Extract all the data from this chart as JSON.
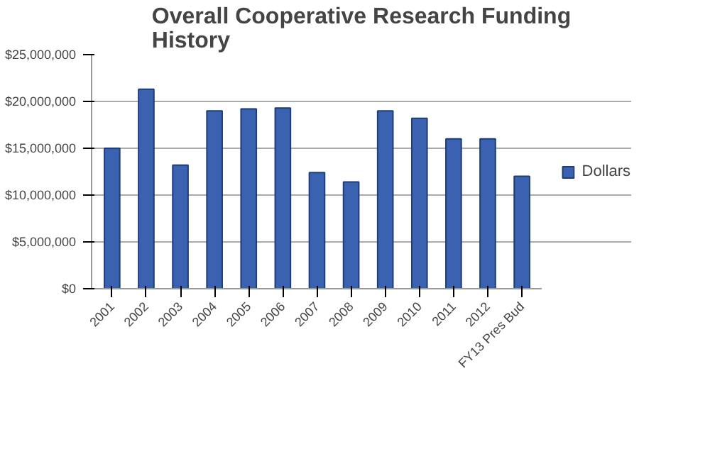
{
  "chart_data": {
    "type": "bar",
    "title": "Overall Cooperative Research Funding History",
    "categories": [
      "2001",
      "2002",
      "2003",
      "2004",
      "2005",
      "2006",
      "2007",
      "2008",
      "2009",
      "2010",
      "2011",
      "2012",
      "FY13 Pres Bud"
    ],
    "series": [
      {
        "name": "Dollars",
        "color": "#3a62b0",
        "values": [
          15000000,
          21300000,
          13200000,
          19000000,
          19200000,
          19300000,
          12400000,
          11400000,
          19000000,
          18200000,
          16000000,
          16000000,
          12000000
        ]
      }
    ],
    "ylim": [
      0,
      25000000
    ],
    "yticks": [
      {
        "value": 0,
        "label": "$0"
      },
      {
        "value": 5000000,
        "label": "$5,000,000"
      },
      {
        "value": 10000000,
        "label": "$10,000,000"
      },
      {
        "value": 15000000,
        "label": "$15,000,000"
      },
      {
        "value": 20000000,
        "label": "$20,000,000"
      },
      {
        "value": 25000000,
        "label": "$25,000,000"
      }
    ],
    "grid": "y",
    "legend": "right"
  }
}
